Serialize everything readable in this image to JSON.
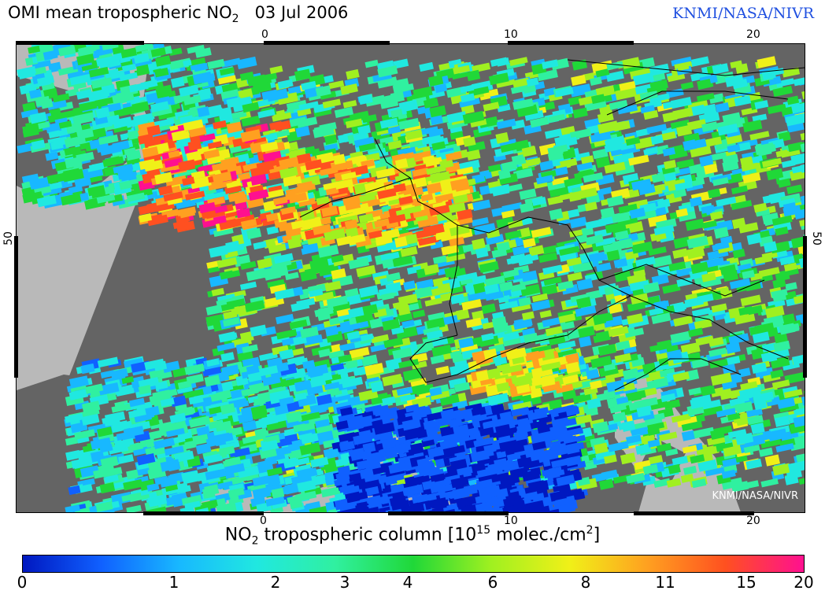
{
  "title": {
    "prefix": "OMI mean tropospheric NO",
    "subscript": "2",
    "date": "03 Jul 2006"
  },
  "credit": "KNMI/NASA/NIVR",
  "watermark": "KNMI/NASA/NIVR",
  "axes": {
    "lon_ticks": [
      "0",
      "10",
      "20"
    ],
    "lat_ticks": [
      "50"
    ]
  },
  "colorbar": {
    "label_prefix": "NO",
    "label_sub": "2",
    "label_mid": " tropospheric column [10",
    "label_sup": "15",
    "label_mid2": " molec./cm",
    "label_sup2": "2",
    "label_end": "]",
    "ticks": [
      "0",
      "1",
      "2",
      "3",
      "4",
      "6",
      "8",
      "11",
      "15",
      "20"
    ],
    "colors": [
      "#0018c0",
      "#1060ff",
      "#18b8ff",
      "#20e8e0",
      "#30f0a0",
      "#20d838",
      "#a0f020",
      "#f0f018",
      "#ffa020",
      "#ff5020",
      "#ff1090"
    ]
  },
  "map": {
    "land_color": "#646464",
    "sea_color": "#b9b9b9"
  }
}
